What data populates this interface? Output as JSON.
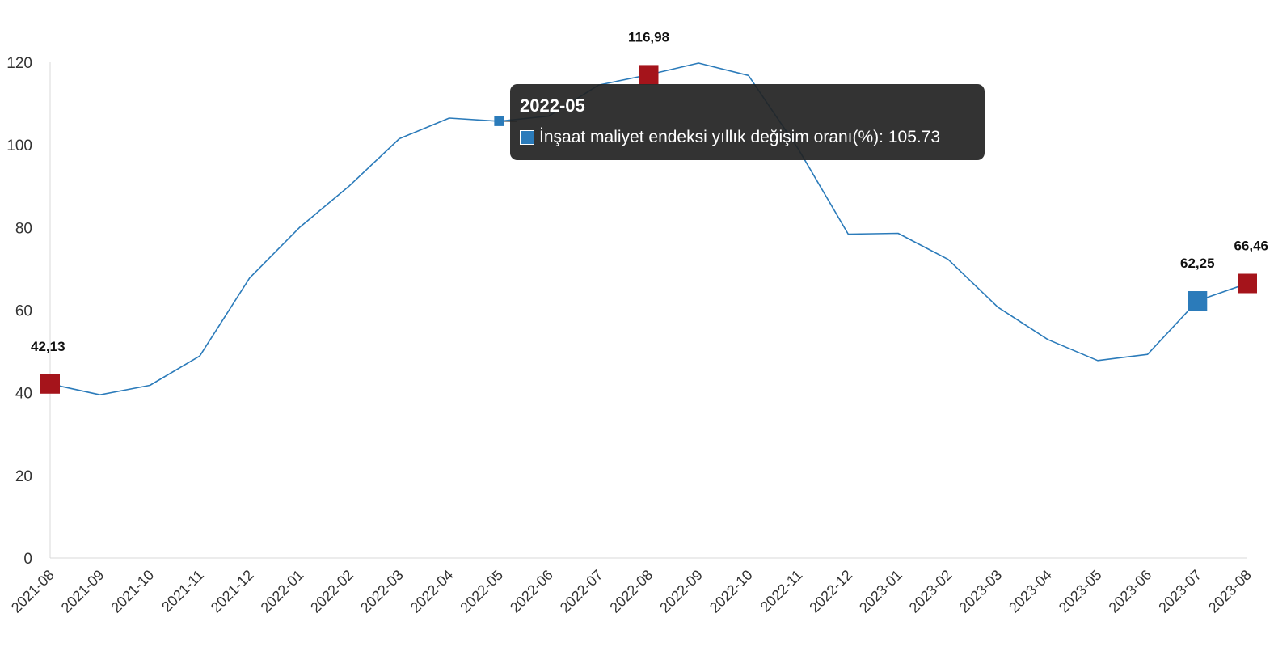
{
  "chart_data": {
    "type": "line",
    "title": "",
    "xlabel": "",
    "ylabel": "",
    "ylim": [
      0,
      120
    ],
    "yticks": [
      "0",
      "20",
      "40",
      "60",
      "80",
      "100",
      "120"
    ],
    "grid": false,
    "legend": "none",
    "categories": [
      "2021-08",
      "2021-09",
      "2021-10",
      "2021-11",
      "2021-12",
      "2022-01",
      "2022-02",
      "2022-03",
      "2022-04",
      "2022-05",
      "2022-06",
      "2022-07",
      "2022-08",
      "2022-09",
      "2022-10",
      "2022-11",
      "2022-12",
      "2023-01",
      "2023-02",
      "2023-03",
      "2023-04",
      "2023-05",
      "2023-06",
      "2023-07",
      "2023-08"
    ],
    "series": [
      {
        "name": "İnşaat maliyet endeksi yıllık değişim oranı(%)",
        "color": "#2b7bba",
        "values": [
          42.13,
          39.5,
          41.8,
          48.9,
          67.8,
          80.0,
          90.1,
          101.5,
          106.5,
          105.73,
          107.0,
          114.5,
          116.98,
          119.8,
          116.8,
          99.0,
          78.4,
          78.6,
          72.3,
          60.7,
          52.9,
          47.8,
          49.3,
          62.25,
          66.46
        ]
      }
    ],
    "annotations": [
      {
        "category": "2021-08",
        "label": "42,13",
        "color": "#a5141b"
      },
      {
        "category": "2022-08",
        "label": "116,98",
        "color": "#a5141b"
      },
      {
        "category": "2023-07",
        "label": "62,25",
        "color": "#2b7bba"
      },
      {
        "category": "2023-08",
        "label": "66,46",
        "color": "#a5141b"
      }
    ],
    "tooltip": {
      "category": "2022-05",
      "title": "2022-05",
      "text": "İnşaat maliyet endeksi yıllık değişim oranı(%): 105.73",
      "swatch_color": "#2b7bba"
    }
  }
}
